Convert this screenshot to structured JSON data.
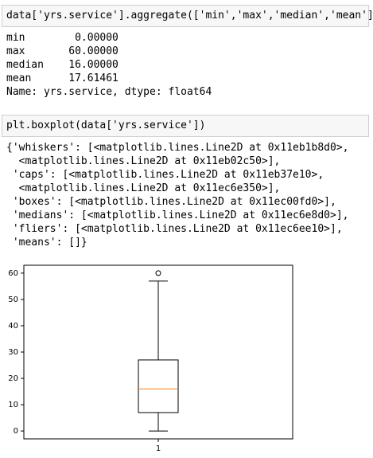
{
  "cells": [
    {
      "input": "data['yrs.service'].aggregate(['min','max','median','mean'])",
      "output": [
        "min        0.00000",
        "max       60.00000",
        "median    16.00000",
        "mean      17.61461",
        "Name: yrs.service, dtype: float64"
      ]
    },
    {
      "input": "plt.boxplot(data['yrs.service'])",
      "output": [
        "{'whiskers': [<matplotlib.lines.Line2D at 0x11eb1b8d0>,",
        "  <matplotlib.lines.Line2D at 0x11eb02c50>],",
        " 'caps': [<matplotlib.lines.Line2D at 0x11eb37e10>,",
        "  <matplotlib.lines.Line2D at 0x11ec6e350>],",
        " 'boxes': [<matplotlib.lines.Line2D at 0x11ec00fd0>],",
        " 'medians': [<matplotlib.lines.Line2D at 0x11ec6e8d0>],",
        " 'fliers': [<matplotlib.lines.Line2D at 0x11ec6ee10>],",
        " 'means': []}"
      ]
    }
  ],
  "chart": {
    "type": "box",
    "categories": [
      "1"
    ],
    "whisker_low": 0,
    "q1": 7,
    "median": 16,
    "q3": 27,
    "whisker_high": 57,
    "fliers": [
      60
    ],
    "ylim": [
      -3,
      63
    ],
    "yticks": [
      0,
      10,
      20,
      30,
      40,
      50,
      60
    ],
    "color": "#000000",
    "median_color": "#ff7f0e"
  }
}
